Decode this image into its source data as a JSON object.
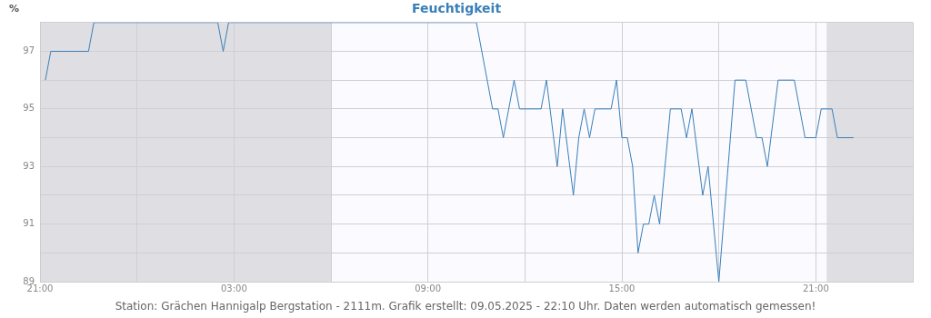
{
  "chart_data": {
    "type": "line",
    "title": "Feuchtigkeit",
    "ylabel": "%",
    "x": [
      "2025-05-08T21:10",
      "2025-05-08T21:20",
      "2025-05-08T22:30",
      "2025-05-08T22:40",
      "2025-05-09T02:30",
      "2025-05-09T02:40",
      "2025-05-09T02:50",
      "2025-05-09T10:30",
      "2025-05-09T11:00",
      "2025-05-09T11:10",
      "2025-05-09T11:20",
      "2025-05-09T11:40",
      "2025-05-09T11:50",
      "2025-05-09T12:30",
      "2025-05-09T12:40",
      "2025-05-09T13:00",
      "2025-05-09T13:10",
      "2025-05-09T13:30",
      "2025-05-09T13:40",
      "2025-05-09T13:50",
      "2025-05-09T14:00",
      "2025-05-09T14:10",
      "2025-05-09T14:40",
      "2025-05-09T14:50",
      "2025-05-09T15:00",
      "2025-05-09T15:10",
      "2025-05-09T15:20",
      "2025-05-09T15:30",
      "2025-05-09T15:40",
      "2025-05-09T15:50",
      "2025-05-09T16:00",
      "2025-05-09T16:10",
      "2025-05-09T16:30",
      "2025-05-09T16:50",
      "2025-05-09T17:00",
      "2025-05-09T17:10",
      "2025-05-09T17:30",
      "2025-05-09T17:40",
      "2025-05-09T18:00",
      "2025-05-09T18:30",
      "2025-05-09T18:50",
      "2025-05-09T19:10",
      "2025-05-09T19:20",
      "2025-05-09T19:30",
      "2025-05-09T19:50",
      "2025-05-09T20:20",
      "2025-05-09T20:40",
      "2025-05-09T21:00",
      "2025-05-09T21:10",
      "2025-05-09T21:30",
      "2025-05-09T21:40",
      "2025-05-09T22:10"
    ],
    "series": [
      {
        "color": "#3a7fb8",
        "values": [
          96,
          97,
          97,
          98,
          98,
          97,
          98,
          98,
          95,
          95,
          94,
          96,
          95,
          95,
          96,
          93,
          95,
          92,
          94,
          95,
          94,
          95,
          95,
          96,
          94,
          94,
          93,
          90,
          91,
          91,
          92,
          91,
          95,
          95,
          94,
          95,
          92,
          93,
          89,
          96,
          96,
          94,
          94,
          93,
          96,
          96,
          94,
          94,
          95,
          95,
          94,
          94
        ]
      }
    ],
    "xlim": [
      "2025-05-08T21:00",
      "2025-05-10T00:00"
    ],
    "xticks": [
      {
        "value": "2025-05-08T21:00",
        "label": "21:00"
      },
      {
        "value": "2025-05-09T00:00",
        "label": null
      },
      {
        "value": "2025-05-09T03:00",
        "label": "03:00"
      },
      {
        "value": "2025-05-09T06:00",
        "label": null
      },
      {
        "value": "2025-05-09T09:00",
        "label": "09:00"
      },
      {
        "value": "2025-05-09T12:00",
        "label": null
      },
      {
        "value": "2025-05-09T15:00",
        "label": "15:00"
      },
      {
        "value": "2025-05-09T18:00",
        "label": null
      },
      {
        "value": "2025-05-09T21:00",
        "label": "21:00"
      },
      {
        "value": "2025-05-10T00:00",
        "label": null
      }
    ],
    "ylim": [
      89,
      98
    ],
    "yticks": [
      89,
      {
        "value": 90,
        "label": null
      },
      91,
      {
        "value": 92,
        "label": null
      },
      93,
      {
        "value": 94,
        "label": null
      },
      95,
      {
        "value": 96,
        "label": null
      },
      97,
      {
        "value": 98,
        "label": null
      }
    ],
    "bands": [
      {
        "axis": "x",
        "from": "2025-05-08T21:00",
        "to": "2025-05-09T06:00",
        "color": "#dfdfe3"
      },
      {
        "axis": "x",
        "from": "2025-05-09T21:20",
        "to": "2025-05-10T00:00",
        "color": "#dfdfe3"
      }
    ],
    "grid": true,
    "marker": "none",
    "line_style": "solid",
    "annotations": [
      "Station: Grächen Hannigalp Bergstation - 2111m. Grafik erstellt: 09.05.2025 - 22:10 Uhr. Daten werden automatisch gemessen!"
    ]
  }
}
